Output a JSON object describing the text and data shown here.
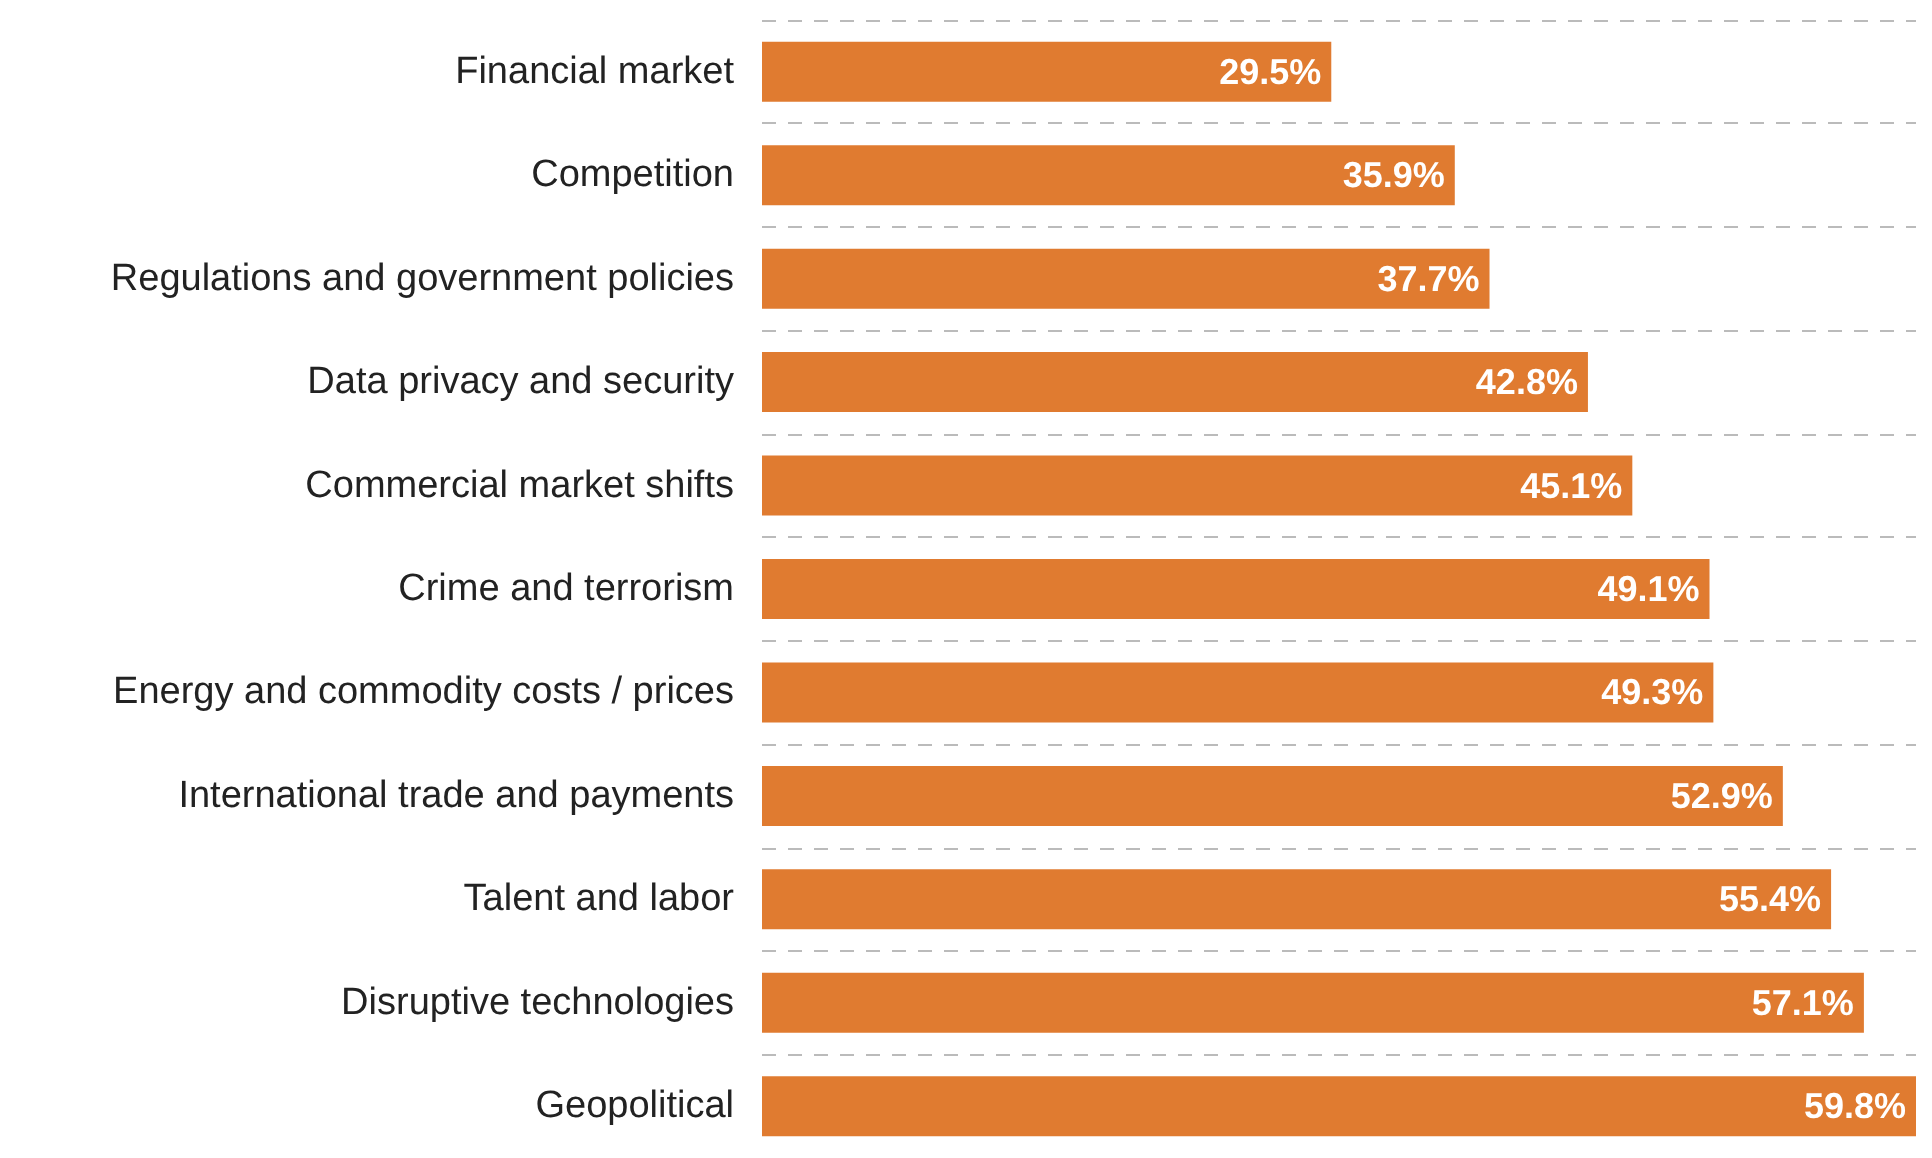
{
  "chart_data": {
    "type": "bar",
    "orientation": "horizontal",
    "categories": [
      "Financial market",
      "Competition",
      "Regulations and government policies",
      "Data privacy and security",
      "Commercial market shifts",
      "Crime and terrorism",
      "Energy and commodity costs / prices",
      "International trade and payments",
      "Talent and labor",
      "Disruptive technologies",
      "Geopolitical"
    ],
    "values": [
      29.5,
      35.9,
      37.7,
      42.8,
      45.1,
      49.1,
      49.3,
      52.9,
      55.4,
      57.1,
      59.8
    ],
    "value_labels": [
      "29.5%",
      "35.9%",
      "37.7%",
      "42.8%",
      "45.1%",
      "49.1%",
      "49.3%",
      "52.9%",
      "55.4%",
      "57.1%",
      "59.8%"
    ],
    "color": "#e07b30",
    "grid": "y",
    "tick_labels": "y"
  }
}
